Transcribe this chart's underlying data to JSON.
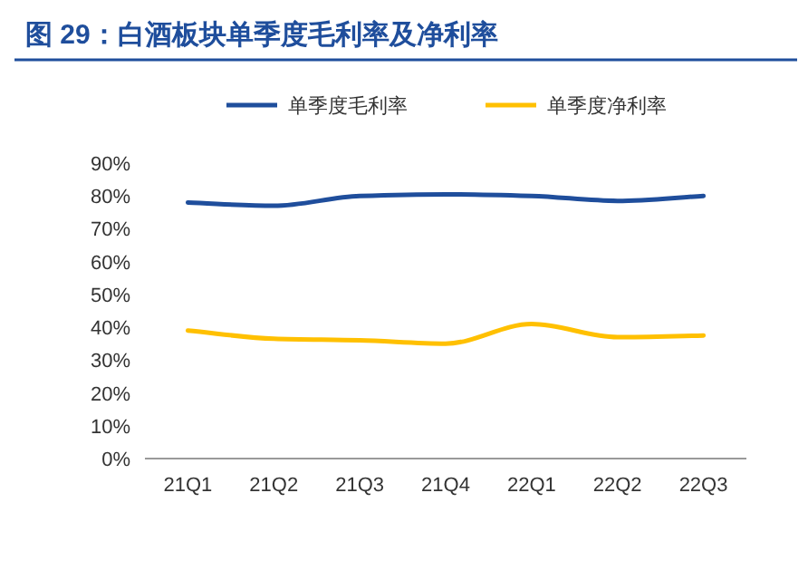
{
  "chart_data": {
    "type": "line",
    "title": "图 29：白酒板块单季度毛利率及净利率",
    "categories": [
      "21Q1",
      "21Q2",
      "21Q3",
      "21Q4",
      "22Q1",
      "22Q2",
      "22Q3"
    ],
    "series": [
      {
        "name": "单季度毛利率",
        "color": "#1f4e9c",
        "values": [
          78,
          77,
          80,
          80.5,
          80,
          78.5,
          80
        ]
      },
      {
        "name": "单季度净利率",
        "color": "#ffc000",
        "values": [
          39,
          36.5,
          36,
          35,
          41,
          37,
          37.5
        ]
      }
    ],
    "ylim": [
      0,
      90
    ],
    "yticks": [
      {
        "value": 0,
        "label": "0%"
      },
      {
        "value": 10,
        "label": "10%"
      },
      {
        "value": 20,
        "label": "20%"
      },
      {
        "value": 30,
        "label": "30%"
      },
      {
        "value": 40,
        "label": "40%"
      },
      {
        "value": 50,
        "label": "50%"
      },
      {
        "value": 60,
        "label": "60%"
      },
      {
        "value": 70,
        "label": "70%"
      },
      {
        "value": 80,
        "label": "80%"
      },
      {
        "value": 90,
        "label": "90%"
      }
    ],
    "legend": "top",
    "grid": false,
    "marker": "none",
    "line_style": "solid"
  }
}
